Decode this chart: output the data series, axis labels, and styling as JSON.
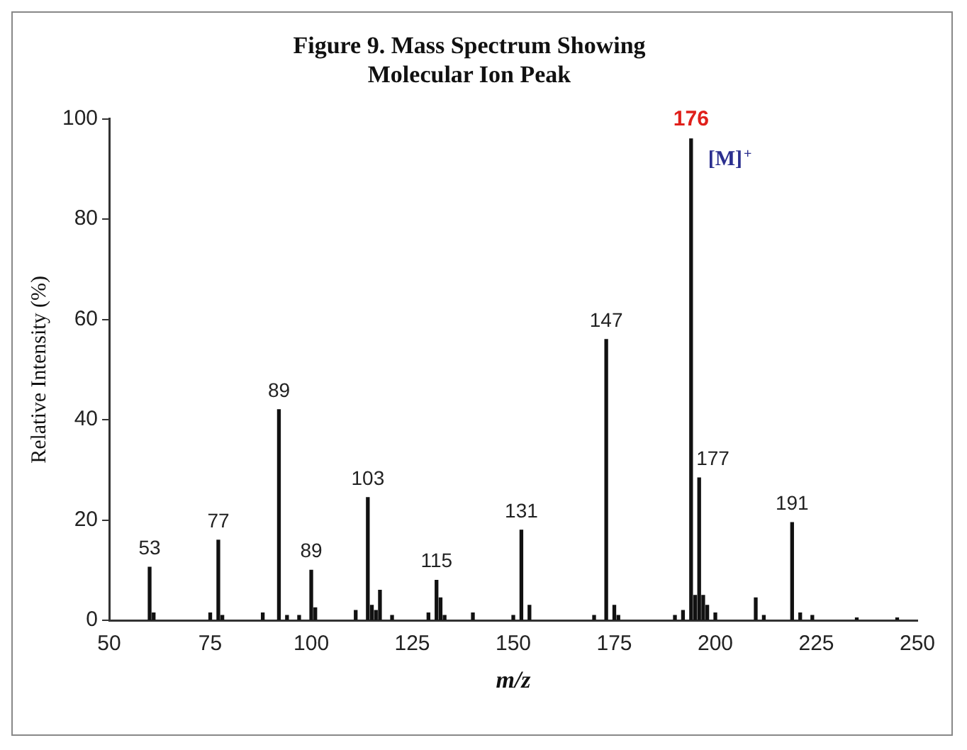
{
  "chart_data": {
    "type": "bar",
    "title": [
      "Figure 9. Mass Spectrum Showing",
      "Molecular Ion Peak"
    ],
    "xlabel": "m/z",
    "ylabel": "Relative Intensity (%)",
    "x": [
      60,
      61,
      75,
      77,
      78,
      88,
      92,
      94,
      97,
      100,
      101,
      111,
      114,
      115,
      116,
      117,
      120,
      129,
      131,
      132,
      133,
      140,
      150,
      152,
      154,
      170,
      173,
      175,
      176,
      190,
      192,
      194,
      195,
      196,
      197,
      198,
      200,
      210,
      212,
      219,
      221,
      224,
      235,
      245
    ],
    "values": [
      10.6,
      1.5,
      1.5,
      16,
      1,
      1.5,
      42,
      1,
      1,
      10,
      2.5,
      2,
      24.5,
      3,
      2,
      6,
      1,
      1.5,
      8,
      4.5,
      1,
      1.5,
      1,
      18,
      3,
      1,
      56,
      3,
      1,
      1,
      2,
      96,
      5,
      28.4,
      5,
      3,
      1.5,
      4.5,
      1,
      19.5,
      1.5,
      1,
      0.5,
      0.5
    ],
    "color": "#111111",
    "xlim": [
      50,
      250
    ],
    "xticks": [
      50,
      75,
      100,
      125,
      150,
      175,
      200,
      225,
      250
    ],
    "ylim": [
      0,
      100
    ],
    "yticks": [
      0,
      20,
      40,
      60,
      80,
      100
    ],
    "grid": false,
    "legend": false,
    "annotations": [
      {
        "text": "53",
        "x": 60,
        "y": 10.6
      },
      {
        "text": "77",
        "x": 77,
        "y": 16
      },
      {
        "text": "89",
        "x": 92,
        "y": 42
      },
      {
        "text": "89",
        "x": 100,
        "y": 10
      },
      {
        "text": "103",
        "x": 114,
        "y": 24.5
      },
      {
        "text": "115",
        "x": 131,
        "y": 8
      },
      {
        "text": "131",
        "x": 152,
        "y": 18
      },
      {
        "text": "147",
        "x": 173,
        "y": 56
      },
      {
        "text": "176",
        "x": 194,
        "y": 96
      },
      {
        "text": "177",
        "x": 196,
        "y": 28.4
      },
      {
        "text": "191",
        "x": 219,
        "y": 19.5
      },
      "[M]$^{+}$"
    ]
  }
}
